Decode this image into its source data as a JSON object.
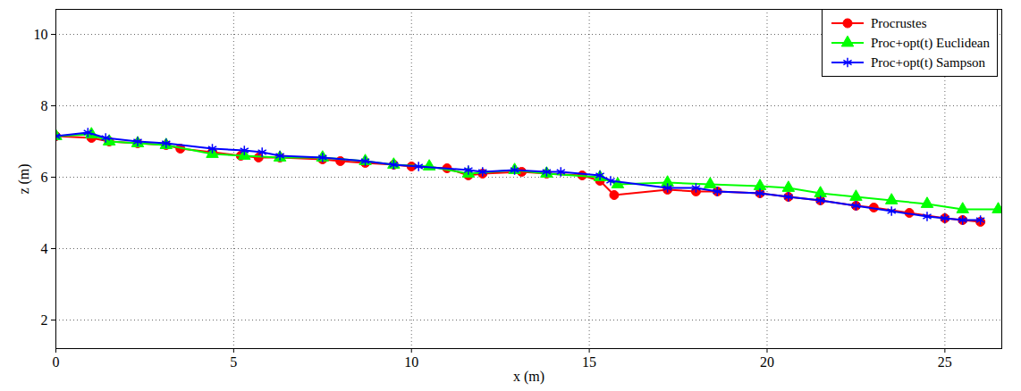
{
  "chart_data": {
    "type": "line",
    "x_label": "x (m)",
    "y_label": "z (m)",
    "xlim": [
      0,
      26.6
    ],
    "ylim": [
      1.2,
      10.7
    ],
    "xticks": [
      0,
      5,
      10,
      15,
      20,
      25
    ],
    "yticks": [
      2,
      4,
      6,
      8,
      10
    ],
    "grid": true,
    "legend": "top-right",
    "series": [
      {
        "name": "Procrustes",
        "color": "#ff0000",
        "marker": "circle",
        "line_style": "solid",
        "x": [
          0,
          1,
          1.5,
          2.3,
          3.1,
          3.5,
          4.4,
          5.2,
          5.7,
          6.3,
          7.5,
          8.0,
          8.7,
          9.5,
          10.0,
          11.0,
          11.6,
          12.0,
          13.1,
          13.8,
          14.8,
          15.3,
          15.7,
          17.2,
          18.0,
          18.6,
          19.8,
          20.6,
          21.5,
          22.5,
          23.0,
          24.0,
          25.0,
          25.5,
          26.0
        ],
        "values": [
          7.15,
          7.1,
          7.0,
          6.95,
          6.9,
          6.8,
          6.7,
          6.6,
          6.55,
          6.55,
          6.5,
          6.45,
          6.4,
          6.35,
          6.3,
          6.25,
          6.05,
          6.1,
          6.15,
          6.1,
          6.05,
          5.9,
          5.5,
          5.65,
          5.6,
          5.6,
          5.55,
          5.45,
          5.35,
          5.2,
          5.15,
          5.0,
          4.85,
          4.8,
          4.75
        ]
      },
      {
        "name": "Proc+opt(t) Euclidean",
        "color": "#00ff00",
        "marker": "triangle",
        "line_style": "solid",
        "x": [
          0,
          1,
          1.5,
          2.3,
          3.1,
          4.4,
          5.3,
          6.3,
          7.5,
          8.7,
          9.5,
          10.5,
          11.6,
          12.9,
          13.8,
          15.3,
          15.8,
          17.2,
          18.4,
          19.8,
          20.6,
          21.5,
          22.5,
          23.5,
          24.5,
          25.5,
          26.5
        ],
        "values": [
          7.15,
          7.2,
          7.0,
          6.95,
          6.9,
          6.65,
          6.6,
          6.55,
          6.55,
          6.45,
          6.35,
          6.3,
          6.1,
          6.2,
          6.1,
          6.0,
          5.8,
          5.85,
          5.8,
          5.75,
          5.7,
          5.55,
          5.45,
          5.35,
          5.25,
          5.1,
          5.1
        ]
      },
      {
        "name": "Proc+opt(t) Sampson",
        "color": "#0000ff",
        "marker": "asterisk",
        "line_style": "solid",
        "x": [
          0,
          0.9,
          1.4,
          2.3,
          3.1,
          4.4,
          5.3,
          5.8,
          6.3,
          7.5,
          8.7,
          9.5,
          10.2,
          11.6,
          12.0,
          12.9,
          13.8,
          14.2,
          15.3,
          15.6,
          17.2,
          18.0,
          18.6,
          19.8,
          20.6,
          21.5,
          22.5,
          23.5,
          24.5,
          25.0,
          25.5,
          26.0
        ],
        "values": [
          7.15,
          7.25,
          7.1,
          7.0,
          6.95,
          6.8,
          6.75,
          6.7,
          6.6,
          6.55,
          6.45,
          6.35,
          6.3,
          6.2,
          6.15,
          6.2,
          6.15,
          6.15,
          6.05,
          5.9,
          5.7,
          5.7,
          5.6,
          5.55,
          5.45,
          5.35,
          5.2,
          5.05,
          4.9,
          4.85,
          4.8,
          4.8
        ]
      }
    ]
  }
}
